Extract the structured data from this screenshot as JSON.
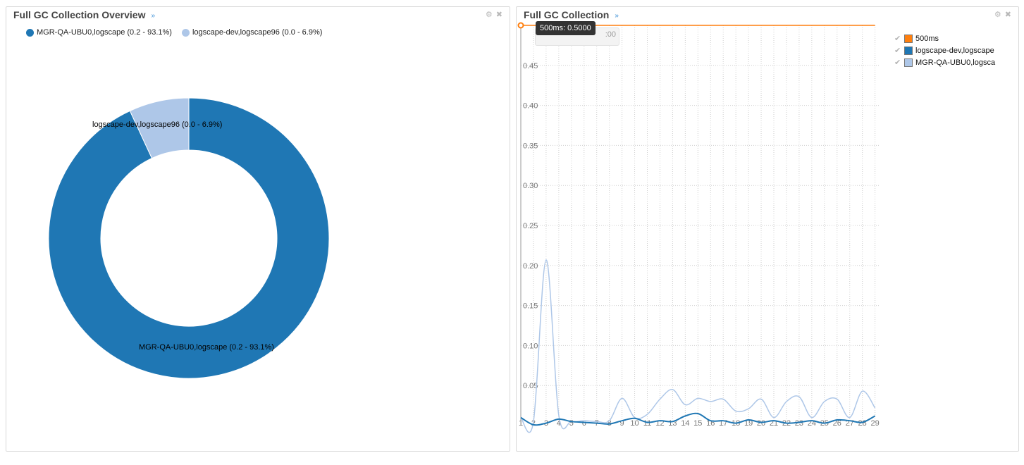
{
  "panels": {
    "left": {
      "title": "Full GC Collection Overview"
    },
    "right": {
      "title": "Full GC Collection"
    }
  },
  "icons": {
    "collapse": "chevron-double-down-icon",
    "settings": "gear-icon",
    "close": "close-icon"
  },
  "tooltip": {
    "text": "500ms: 0.5000",
    "ghost_text": ":00"
  },
  "colors": {
    "dark_blue": "#1f77b4",
    "light_blue": "#aec7e8",
    "orange": "#ff7f0e"
  },
  "chart_data": [
    {
      "type": "pie",
      "variant": "donut",
      "slices": [
        {
          "name": "MGR-QA-UBU0,logscape (0.2 - 93.1%)",
          "value": 93.1,
          "color": "#1f77b4"
        },
        {
          "name": "logscape-dev,logscape96 (0.0 - 6.9%)",
          "value": 6.9,
          "color": "#aec7e8"
        }
      ],
      "legend": "top-left"
    },
    {
      "type": "line",
      "x": [
        1,
        2,
        3,
        4,
        5,
        6,
        7,
        8,
        9,
        10,
        11,
        12,
        13,
        14,
        15,
        16,
        17,
        18,
        19,
        20,
        21,
        22,
        23,
        24,
        25,
        26,
        27,
        28,
        29
      ],
      "series": [
        {
          "name": "500ms",
          "color": "#ff7f0e",
          "values": [
            0.5,
            0.5,
            0.5,
            0.5,
            0.5,
            0.5,
            0.5,
            0.5,
            0.5,
            0.5,
            0.5,
            0.5,
            0.5,
            0.5,
            0.5,
            0.5,
            0.5,
            0.5,
            0.5,
            0.5,
            0.5,
            0.5,
            0.5,
            0.5,
            0.5,
            0.5,
            0.5,
            0.5,
            0.5
          ]
        },
        {
          "name": "logscape-dev,logscape",
          "color": "#1f77b4",
          "values": [
            0.01,
            0.001,
            0.003,
            0.008,
            0.005,
            0.004,
            0.003,
            0.002,
            0.006,
            0.009,
            0.004,
            0.006,
            0.005,
            0.012,
            0.015,
            0.006,
            0.006,
            0.003,
            0.007,
            0.004,
            0.006,
            0.003,
            0.004,
            0.006,
            0.003,
            0.007,
            0.006,
            0.004,
            0.012
          ]
        },
        {
          "name": "MGR-QA-UBU0,logsca",
          "color": "#aec7e8",
          "values": [
            0.01,
            0.005,
            0.207,
            0.013,
            0.005,
            0.006,
            0.005,
            0.006,
            0.034,
            0.01,
            0.014,
            0.033,
            0.045,
            0.026,
            0.034,
            0.03,
            0.033,
            0.018,
            0.021,
            0.033,
            0.01,
            0.03,
            0.036,
            0.01,
            0.03,
            0.033,
            0.01,
            0.043,
            0.022
          ]
        }
      ],
      "yticks": [
        "0.05",
        "0.10",
        "0.15",
        "0.20",
        "0.25",
        "0.30",
        "0.35",
        "0.40",
        "0.45"
      ],
      "ylim": [
        0,
        0.5
      ],
      "xlim": [
        1,
        29.3
      ],
      "grid": true,
      "legend": "right"
    }
  ]
}
